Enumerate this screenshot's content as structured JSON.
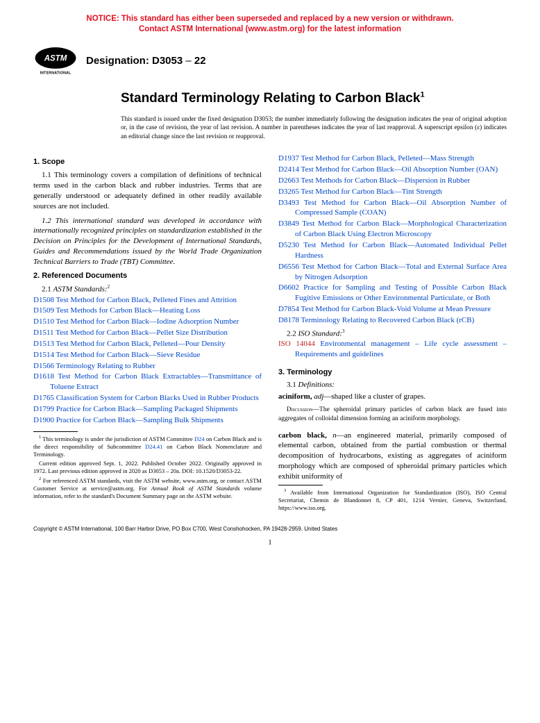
{
  "notice_line1": "NOTICE: This standard has either been superseded and replaced by a new version or withdrawn.",
  "notice_line2": "Contact ASTM International (www.astm.org) for the latest information",
  "designation_label": "Designation: D3053 ",
  "designation_year": "22",
  "logo_text_top": "INTERNATIONAL",
  "title_line": "Standard Terminology Relating to Carbon Black",
  "title_sup": "1",
  "standard_note": "This standard is issued under the fixed designation D3053; the number immediately following the designation indicates the year of original adoption or, in the case of revision, the year of last revision. A number in parentheses indicates the year of last reapproval. A superscript epsilon (ε) indicates an editorial change since the last revision or reapproval.",
  "sec1_head": "1. Scope",
  "sec1_p1": "1.1 This terminology covers a compilation of definitions of technical terms used in the carbon black and rubber industries. Terms that are generally understood or adequately defined in other readily available sources are not included.",
  "sec1_p2": "1.2 This international standard was developed in accordance with internationally recognized principles on standardization established in the Decision on Principles for the Development of International Standards, Guides and Recommendations issued by the World Trade Organization Technical Barriers to Trade (TBT) Committee.",
  "sec2_head": "2. Referenced Documents",
  "sec2_sub": {
    "num": "2.1 ",
    "label_italic": "ASTM Standards:",
    "sup": "2"
  },
  "refs_left": [
    {
      "code": "D1508",
      "title": " Test Method for Carbon Black, Pelleted Fines and Attrition"
    },
    {
      "code": "D1509",
      "title": " Test Methods for Carbon Black—Heating Loss"
    },
    {
      "code": "D1510",
      "title": " Test Method for Carbon Black—Iodine Adsorption Number"
    },
    {
      "code": "D1511",
      "title": " Test Method for Carbon Black—Pellet Size Distribution"
    },
    {
      "code": "D1513",
      "title": " Test Method for Carbon Black, Pelleted—Pour Density"
    },
    {
      "code": "D1514",
      "title": " Test Method for Carbon Black—Sieve Residue"
    },
    {
      "code": "D1566",
      "title": " Terminology Relating to Rubber"
    },
    {
      "code": "D1618",
      "title": " Test Method for Carbon Black Extractables—Transmittance of Toluene Extract"
    },
    {
      "code": "D1765",
      "title": " Classification System for Carbon Blacks Used in Rubber Products"
    },
    {
      "code": "D1799",
      "title": " Practice for Carbon Black—Sampling Packaged Shipments"
    },
    {
      "code": "D1900",
      "title": " Practice for Carbon Black—Sampling Bulk Shipments"
    }
  ],
  "refs_right": [
    {
      "code": "D1937",
      "title": " Test Method for Carbon Black, Pelleted—Mass Strength"
    },
    {
      "code": "D2414",
      "title": " Test Method for Carbon Black—Oil Absorption Number (OAN)"
    },
    {
      "code": "D2663",
      "title": " Test Methods for Carbon Black—Dispersion in Rubber"
    },
    {
      "code": "D3265",
      "title": " Test Method for Carbon Black—Tint Strength"
    },
    {
      "code": "D3493",
      "title": " Test Method for Carbon Black—Oil Absorption Number of Compressed Sample (COAN)"
    },
    {
      "code": "D3849",
      "title": " Test Method for Carbon Black—Morphological Characterization of Carbon Black Using Electron Microscopy"
    },
    {
      "code": "D5230",
      "title": " Test Method for Carbon Black—Automated Individual Pellet Hardness"
    },
    {
      "code": "D6556",
      "title": " Test Method for Carbon Black—Total and External Surface Area by Nitrogen Adsorption"
    },
    {
      "code": "D6602",
      "title": " Practice for Sampling and Testing of Possible Carbon Black Fugitive Emissions or Other Environmental Particulate, or Both"
    },
    {
      "code": "D7854",
      "title": " Test Method for Carbon Black-Void Volume at Mean Pressure"
    },
    {
      "code": "D8178",
      "title": " Terminology Relating to Recovered Carbon Black (rCB)"
    }
  ],
  "sec2_iso_sub": {
    "num": "2.2 ",
    "label_italic": "ISO Standard:",
    "sup": "3"
  },
  "iso_ref": {
    "code": "ISO 14044",
    "title": " Environmental management – Life cycle assessment – Requirements and guidelines"
  },
  "sec3_head": "3. Terminology",
  "sec3_sub": {
    "num": "3.1 ",
    "label_italic": "Definitions:"
  },
  "term1_word": "aciniform,",
  "term1_pos": " adj",
  "term1_def": "—shaped like a cluster of grapes.",
  "term1_disc_label": "Discussion",
  "term1_disc": "—The spheroidal primary particles of carbon black are fused into aggregates of colloidal dimension forming an aciniform morphology.",
  "term2_word": "carbon black,",
  "term2_pos": " n",
  "term2_def": "—an engineered material, primarily composed of elemental carbon, obtained from the partial combustion or thermal decomposition of hydrocarbons, existing as aggregates of aciniform morphology which are composed of spheroidal primary particles which exhibit uniformity of",
  "fn1_sup": "1",
  "fn1a": " This terminology is under the jurisdiction of ASTM Committee ",
  "fn1_link1": "D24",
  "fn1b": " on Carbon Black and is the direct responsibility of Subcommittee ",
  "fn1_link2": "D24.41",
  "fn1c": " on Carbon Black Nomenclature and Terminology.",
  "fn1d": "Current edition approved Sept. 1, 2022. Published October 2022. Originally approved in 1972. Last previous edition approved in 2020 as D3053 – 20a. DOI: 10.1520/D3053-22.",
  "fn2_sup": "2",
  "fn2": " For referenced ASTM standards, visit the ASTM website, www.astm.org, or contact ASTM Customer Service at service@astm.org. For Annual Book of ASTM Standards volume information, refer to the standard's Document Summary page on the ASTM website.",
  "fn2_italic": "Annual Book of ASTM Standards",
  "fn2_pre": " For referenced ASTM standards, visit the ASTM website, www.astm.org, or contact ASTM Customer Service at service@astm.org. For ",
  "fn2_post": " volume information, refer to the standard's Document Summary page on the ASTM website.",
  "fn3_sup": "3",
  "fn3": " Available from International Organization for Standardization (ISO), ISO Central Secretariat, Chemin de Blandonnet 8, CP 401, 1214 Vernier, Geneva, Switzerland, https://www.iso.org.",
  "copyright": "Copyright © ASTM International, 100 Barr Harbor Drive, PO Box C700, West Conshohocken, PA 19428-2959. United States",
  "pagenum": "1"
}
